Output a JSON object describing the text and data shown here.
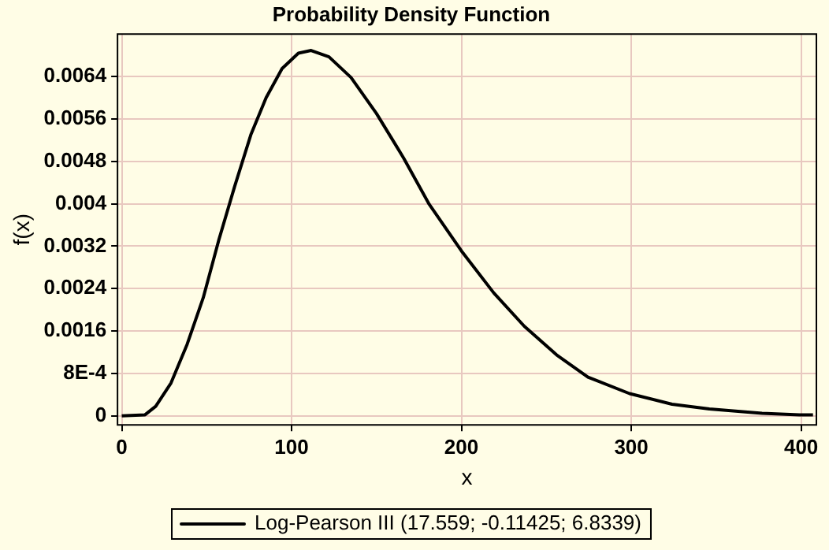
{
  "chart_data": {
    "type": "line",
    "title": "Probability Density Function",
    "xlabel": "x",
    "ylabel": "f(x)",
    "series": [
      {
        "name": "Log-Pearson III (17.559; -0.11425; 6.8339)",
        "color": "#000000",
        "x": [
          0,
          13.7,
          20,
          29,
          38.5,
          48,
          57,
          66.5,
          76,
          85,
          94.4,
          104,
          111.5,
          122,
          135,
          150,
          166,
          181,
          200,
          219,
          237,
          256,
          274.5,
          299,
          324,
          346,
          377,
          399,
          407
        ],
        "values": [
          0,
          2e-05,
          0.00018,
          0.00062,
          0.00135,
          0.00223,
          0.0033,
          0.00433,
          0.0053,
          0.006,
          0.00655,
          0.00684,
          0.00689,
          0.00677,
          0.00638,
          0.0057,
          0.00486,
          0.00399,
          0.00311,
          0.00232,
          0.00169,
          0.00115,
          0.00073,
          0.00042,
          0.00022,
          0.00013,
          5e-05,
          2e-05,
          2e-05
        ]
      }
    ],
    "xlim": [
      -2.5,
      409
    ],
    "xticks": [
      0,
      100,
      200,
      300,
      400
    ],
    "ylim": [
      -0.00017,
      0.0072
    ],
    "yticks": [
      0,
      {
        "value": 0.0008,
        "label": "8E-4"
      },
      0.0016,
      0.0024,
      0.0032,
      0.004,
      0.0048,
      0.0056,
      0.0064
    ],
    "grid": true,
    "legend": "bottom",
    "marker": "none",
    "line_style": "solid"
  }
}
